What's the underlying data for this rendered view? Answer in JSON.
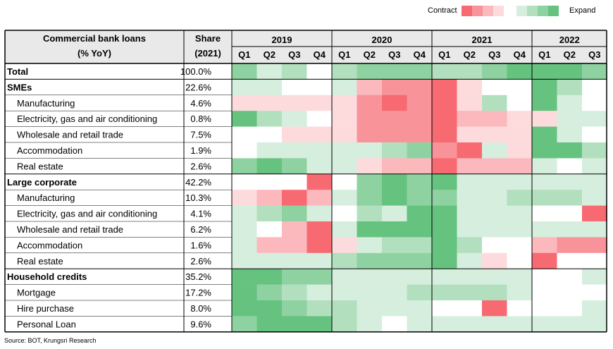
{
  "legend": {
    "contract_label": "Contract",
    "expand_label": "Expand",
    "contract_colors": [
      "#f76a71",
      "#f9939a",
      "#fbb8bd",
      "#fddbdd"
    ],
    "expand_colors": [
      "#d6eedd",
      "#b2e0bf",
      "#8fd2a1",
      "#66c27f"
    ]
  },
  "source": "Source: BOT, Krungsri Research",
  "chart_data": {
    "type": "heatmap",
    "header": {
      "label_line1": "Commercial bank loans",
      "label_line2": "(% YoY)",
      "share_line1": "Share",
      "share_line2": "(2021)"
    },
    "years": [
      {
        "label": "2019",
        "quarters": [
          "Q1",
          "Q2",
          "Q3",
          "Q4"
        ]
      },
      {
        "label": "2020",
        "quarters": [
          "Q1",
          "Q2",
          "Q3",
          "Q4"
        ]
      },
      {
        "label": "2021",
        "quarters": [
          "Q1",
          "Q2",
          "Q3",
          "Q4"
        ]
      },
      {
        "label": "2022",
        "quarters": [
          "Q1",
          "Q2",
          "Q3"
        ]
      }
    ],
    "scale_note": "cell values: negative = contract (red), positive = expand (green), magnitude 0-4",
    "rows": [
      {
        "label": "Total",
        "share": "100.0%",
        "bold": true,
        "indent": false,
        "values": [
          3,
          1,
          2,
          0,
          2,
          3,
          3,
          3,
          2,
          2,
          3,
          4,
          4,
          4,
          3
        ]
      },
      {
        "label": "SMEs",
        "share": "22.6%",
        "bold": true,
        "indent": false,
        "values": [
          1,
          1,
          0,
          0,
          1,
          -2,
          -3,
          -3,
          -4,
          -1,
          0,
          0,
          4,
          2,
          0
        ]
      },
      {
        "label": "Manufacturing",
        "share": "4.6%",
        "bold": false,
        "indent": true,
        "values": [
          -1,
          -1,
          -1,
          -1,
          -1,
          -3,
          -4,
          -3,
          -4,
          -1,
          2,
          0,
          4,
          1,
          0
        ]
      },
      {
        "label": "Electricity, gas and air conditioning",
        "share": "0.8%",
        "bold": false,
        "indent": true,
        "values": [
          4,
          2,
          1,
          0,
          -1,
          -3,
          -3,
          -3,
          -4,
          -2,
          -2,
          -1,
          -1,
          1,
          1
        ]
      },
      {
        "label": "Wholesale and retail trade",
        "share": "7.5%",
        "bold": false,
        "indent": true,
        "values": [
          0,
          0,
          -1,
          -1,
          -1,
          -3,
          -3,
          -3,
          -4,
          -1,
          -1,
          -1,
          4,
          1,
          0
        ]
      },
      {
        "label": "Accommodation",
        "share": "1.9%",
        "bold": false,
        "indent": true,
        "values": [
          0,
          1,
          1,
          1,
          1,
          1,
          2,
          3,
          -3,
          -4,
          1,
          -1,
          4,
          4,
          2
        ]
      },
      {
        "label": "Real estate",
        "share": "2.6%",
        "bold": false,
        "indent": true,
        "values": [
          3,
          4,
          3,
          1,
          1,
          -1,
          -2,
          -2,
          -4,
          -2,
          -2,
          -2,
          1,
          0,
          1
        ]
      },
      {
        "label": "Large corporate",
        "share": "42.2%",
        "bold": true,
        "indent": false,
        "values": [
          0,
          0,
          0,
          -4,
          0,
          3,
          4,
          3,
          4,
          1,
          1,
          1,
          1,
          1,
          1
        ]
      },
      {
        "label": "Manufacturing",
        "share": "10.3%",
        "bold": false,
        "indent": true,
        "values": [
          -1,
          -2,
          -4,
          -2,
          1,
          3,
          4,
          3,
          3,
          1,
          1,
          2,
          2,
          2,
          1
        ]
      },
      {
        "label": "Electricity, gas and air conditioning",
        "share": "4.1%",
        "bold": false,
        "indent": true,
        "values": [
          1,
          2,
          3,
          1,
          0,
          2,
          1,
          4,
          4,
          1,
          1,
          1,
          0,
          0,
          -4
        ]
      },
      {
        "label": "Wholesale and retail trade",
        "share": "6.2%",
        "bold": false,
        "indent": true,
        "values": [
          1,
          0,
          -2,
          -4,
          1,
          4,
          4,
          4,
          4,
          1,
          1,
          1,
          1,
          1,
          1
        ]
      },
      {
        "label": "Accommodation",
        "share": "1.6%",
        "bold": false,
        "indent": true,
        "values": [
          1,
          -2,
          -2,
          -4,
          -1,
          1,
          2,
          2,
          4,
          2,
          0,
          0,
          -2,
          -3,
          -3
        ]
      },
      {
        "label": "Real estate",
        "share": "2.6%",
        "bold": false,
        "indent": true,
        "values": [
          1,
          1,
          1,
          1,
          2,
          3,
          3,
          3,
          4,
          1,
          -1,
          0,
          -4,
          0,
          0
        ]
      },
      {
        "label": "Household credits",
        "share": "35.2%",
        "bold": true,
        "indent": false,
        "values": [
          4,
          4,
          3,
          3,
          1,
          1,
          1,
          1,
          1,
          1,
          1,
          1,
          0,
          0,
          1
        ]
      },
      {
        "label": "Mortgage",
        "share": "17.2%",
        "bold": false,
        "indent": true,
        "values": [
          4,
          3,
          2,
          1,
          1,
          1,
          1,
          2,
          2,
          2,
          2,
          1,
          0,
          0,
          0
        ]
      },
      {
        "label": "Hire purchase",
        "share": "8.0%",
        "bold": false,
        "indent": true,
        "values": [
          4,
          4,
          3,
          2,
          2,
          1,
          1,
          1,
          0,
          0,
          -4,
          0,
          0,
          0,
          1
        ]
      },
      {
        "label": "Personal Loan",
        "share": "9.6%",
        "bold": false,
        "indent": true,
        "values": [
          3,
          4,
          4,
          4,
          2,
          1,
          0,
          1,
          1,
          1,
          1,
          1,
          1,
          1,
          1
        ]
      }
    ]
  }
}
